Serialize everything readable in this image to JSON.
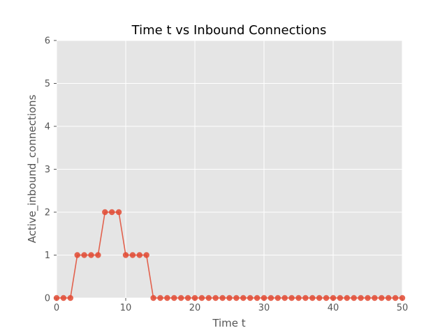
{
  "chart_data": {
    "type": "line",
    "title": "Time t vs Inbound Connections",
    "xlabel": "Time t",
    "ylabel": "Active_inbound_connections",
    "xlim": [
      0,
      50
    ],
    "ylim": [
      0,
      6
    ],
    "xticks": [
      "0",
      "10",
      "20",
      "30",
      "40",
      "50"
    ],
    "yticks": [
      "0",
      "1",
      "2",
      "3",
      "4",
      "5",
      "6"
    ],
    "grid": true,
    "markers": true,
    "colors": {
      "series": "#e24a33",
      "plot_background": "#e5e5e5",
      "grid": "#ffffff",
      "text": "#555555"
    },
    "series": [
      {
        "x": [
          0,
          1,
          2,
          3,
          4,
          5,
          6,
          7,
          8,
          9,
          10,
          11,
          12,
          13,
          14,
          15,
          16,
          17,
          18,
          19,
          20,
          21,
          22,
          23,
          24,
          25,
          26,
          27,
          28,
          29,
          30,
          31,
          32,
          33,
          34,
          35,
          36,
          37,
          38,
          39,
          40,
          41,
          42,
          43,
          44,
          45,
          46,
          47,
          48,
          49,
          50
        ],
        "values": [
          0,
          0,
          0,
          1,
          1,
          1,
          1,
          2,
          2,
          2,
          1,
          1,
          1,
          1,
          0,
          0,
          0,
          0,
          0,
          0,
          0,
          0,
          0,
          0,
          0,
          0,
          0,
          0,
          0,
          0,
          0,
          0,
          0,
          0,
          0,
          0,
          0,
          0,
          0,
          0,
          0,
          0,
          0,
          0,
          0,
          0,
          0,
          0,
          0,
          0,
          0
        ]
      }
    ]
  }
}
